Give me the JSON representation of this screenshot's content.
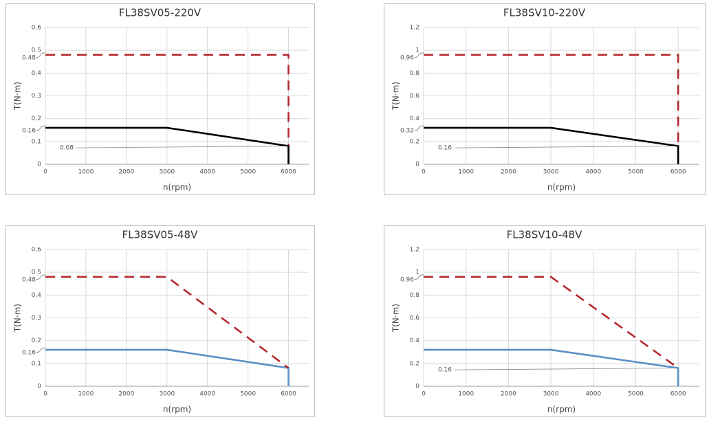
{
  "chart_data": [
    {
      "type": "line",
      "title": "FL38SV05-220V",
      "x_label": "n(rpm)",
      "y_label": "T(N·m)",
      "xlim": [
        0,
        6500
      ],
      "xticks": [
        0,
        1000,
        2000,
        3000,
        4000,
        5000,
        6000
      ],
      "ylim": [
        0,
        0.6
      ],
      "yticks": [
        0,
        0.1,
        0.2,
        0.3,
        0.4,
        0.5,
        0.6
      ],
      "grid": true,
      "marked_levels": [
        0.48,
        0.16
      ],
      "callouts": [
        0.08
      ],
      "series": [
        {
          "color": "#b5282e",
          "dashed": true,
          "x": [
            0,
            3000,
            6000,
            6000
          ],
          "values": [
            0.48,
            0.48,
            0.48,
            0
          ]
        },
        {
          "color": "#000000",
          "dashed": false,
          "x": [
            0,
            3000,
            6000,
            6000
          ],
          "values": [
            0.16,
            0.16,
            0.08,
            0
          ]
        }
      ]
    },
    {
      "type": "line",
      "title": "FL38SV10-220V",
      "x_label": "n(rpm)",
      "y_label": "T(N·m)",
      "xlim": [
        0,
        6500
      ],
      "xticks": [
        0,
        1000,
        2000,
        3000,
        4000,
        5000,
        6000
      ],
      "ylim": [
        0,
        1.2
      ],
      "yticks": [
        0,
        0.2,
        0.4,
        0.6,
        0.8,
        1,
        1.2
      ],
      "grid": true,
      "marked_levels": [
        0.96,
        0.32
      ],
      "callouts": [
        0.16
      ],
      "series": [
        {
          "color": "#b5282e",
          "dashed": true,
          "x": [
            0,
            3000,
            6000,
            6000
          ],
          "values": [
            0.96,
            0.96,
            0.96,
            0
          ]
        },
        {
          "color": "#000000",
          "dashed": false,
          "x": [
            0,
            3000,
            6000,
            6000
          ],
          "values": [
            0.32,
            0.32,
            0.16,
            0
          ]
        }
      ]
    },
    {
      "type": "line",
      "title": "FL38SV05-48V",
      "x_label": "n(rpm)",
      "y_label": "T(N·m)",
      "xlim": [
        0,
        6500
      ],
      "xticks": [
        0,
        1000,
        2000,
        3000,
        4000,
        5000,
        6000
      ],
      "ylim": [
        0,
        0.6
      ],
      "yticks": [
        0,
        0.1,
        0.2,
        0.3,
        0.4,
        0.5,
        0.6
      ],
      "grid": true,
      "marked_levels": [
        0.48,
        0.16
      ],
      "callouts": [],
      "series": [
        {
          "color": "#5b8fc6",
          "dashed": false,
          "x": [
            0,
            3000,
            6000,
            6000
          ],
          "values": [
            0.16,
            0.16,
            0.08,
            0
          ]
        },
        {
          "color": "#b5282e",
          "dashed": true,
          "x": [
            0,
            3000,
            6000
          ],
          "values": [
            0.48,
            0.48,
            0.08
          ]
        }
      ]
    },
    {
      "type": "line",
      "title": "FL38SV10-48V",
      "x_label": "n(rpm)",
      "y_label": "T(N·m)",
      "xlim": [
        0,
        6500
      ],
      "xticks": [
        0,
        1000,
        2000,
        3000,
        4000,
        5000,
        6000
      ],
      "ylim": [
        0,
        1.2
      ],
      "yticks": [
        0,
        0.2,
        0.4,
        0.6,
        0.8,
        1,
        1.2
      ],
      "grid": true,
      "marked_levels": [
        0.96
      ],
      "callouts": [
        0.16
      ],
      "series": [
        {
          "color": "#5b8fc6",
          "dashed": false,
          "x": [
            0,
            3000,
            6000,
            6000
          ],
          "values": [
            0.32,
            0.32,
            0.16,
            0
          ]
        },
        {
          "color": "#b5282e",
          "dashed": true,
          "x": [
            0,
            3000,
            6000
          ],
          "values": [
            0.96,
            0.96,
            0.16
          ]
        }
      ]
    }
  ]
}
